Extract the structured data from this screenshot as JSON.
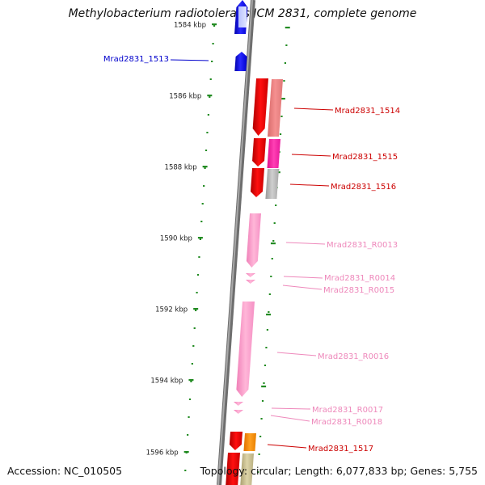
{
  "title": "Methylobacterium radiotolerans JCM 2831, complete genome",
  "accession": "Accession: NC_010505",
  "topology": "Topology: circular; Length: 6,077,833 bp; Genes: 5,755",
  "colors": {
    "tick": "#228b22",
    "backbone": "#888888",
    "blue": "#0000ee",
    "red": "#ee0000",
    "salmon": "#f08080",
    "magenta": "#ff1fa0",
    "grey": "#b4b4b4",
    "pink": "#ff9ccc",
    "orange": "#ff8c00",
    "khaki": "#c8be8c"
  },
  "ruler_labels": [
    "1584 kbp",
    "1586 kbp",
    "1588 kbp",
    "1590 kbp",
    "1592 kbp",
    "1594 kbp",
    "1596 kbp"
  ],
  "gene_labels": [
    {
      "text": "Mrad2831_1513",
      "color": "#0000cc"
    },
    {
      "text": "Mrad2831_1514",
      "color": "#cc0000"
    },
    {
      "text": "Mrad2831_1515",
      "color": "#cc0000"
    },
    {
      "text": "Mrad2831_1516",
      "color": "#cc0000"
    },
    {
      "text": "Mrad2831_R0013",
      "color": "#ee88bb"
    },
    {
      "text": "Mrad2831_R0014",
      "color": "#ee88bb"
    },
    {
      "text": "Mrad2831_R0015",
      "color": "#ee88bb"
    },
    {
      "text": "Mrad2831_R0016",
      "color": "#ee88bb"
    },
    {
      "text": "Mrad2831_R0017",
      "color": "#ee88bb"
    },
    {
      "text": "Mrad2831_R0018",
      "color": "#ee88bb"
    },
    {
      "text": "Mrad2831_1517",
      "color": "#cc0000"
    }
  ]
}
